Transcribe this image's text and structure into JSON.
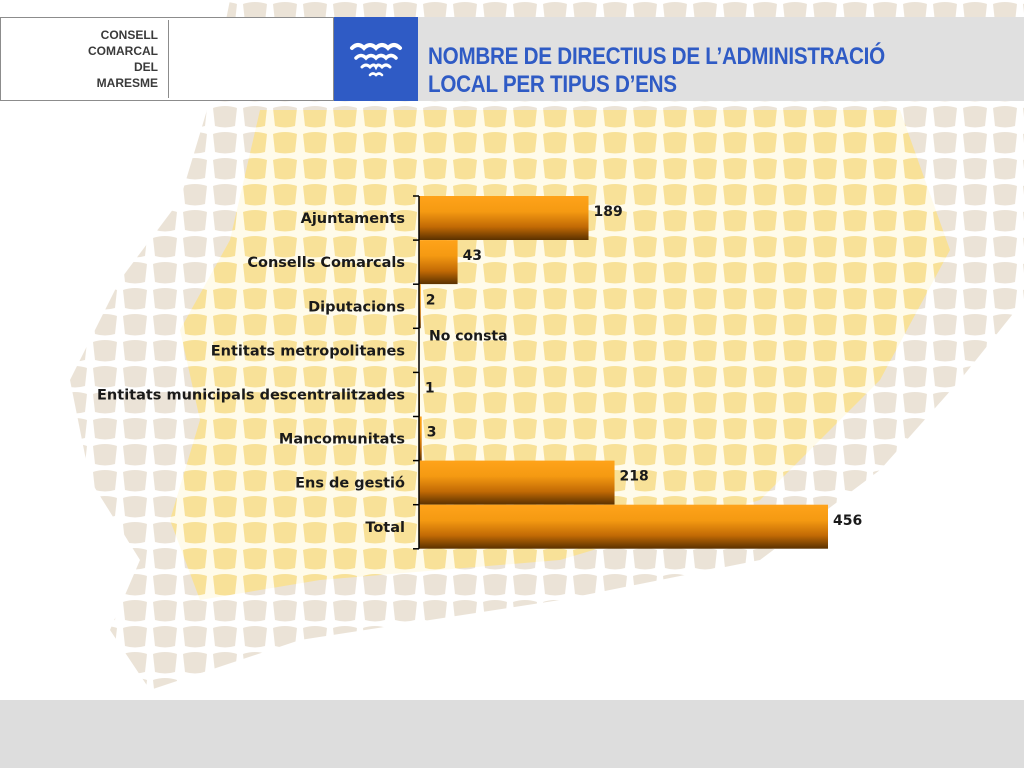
{
  "header": {
    "logo_lines": [
      "CONSELL",
      "COMARCAL",
      "DEL",
      "MARESME"
    ],
    "title": "NOMBRE DE DIRECTIUS DE L’ADMINISTRACIÓ LOCAL PER TIPUS D’ENS",
    "icon": "waves-emblem-icon"
  },
  "colors": {
    "header_blue": "#2f5bc5",
    "bar_light": "#ffa31a",
    "bar_dark": "#5a3100",
    "background_honeycomb": "#f6d87a"
  },
  "chart_data": {
    "type": "bar",
    "orientation": "horizontal",
    "title": "",
    "xlabel": "",
    "ylabel": "",
    "categories": [
      "Ajuntaments",
      "Consells Comarcals",
      "Diputacions",
      "Entitats metropolitanes",
      "Entitats municipals descentralitzades",
      "Mancomunitats",
      "Ens de gestió",
      "Total"
    ],
    "values": [
      189,
      43,
      2,
      null,
      1,
      3,
      218,
      456
    ],
    "data_labels": [
      "189",
      "43",
      "2",
      "No consta",
      "1",
      "3",
      "218",
      "456"
    ],
    "xlim": [
      0,
      456
    ],
    "grid": false,
    "legend": false
  }
}
